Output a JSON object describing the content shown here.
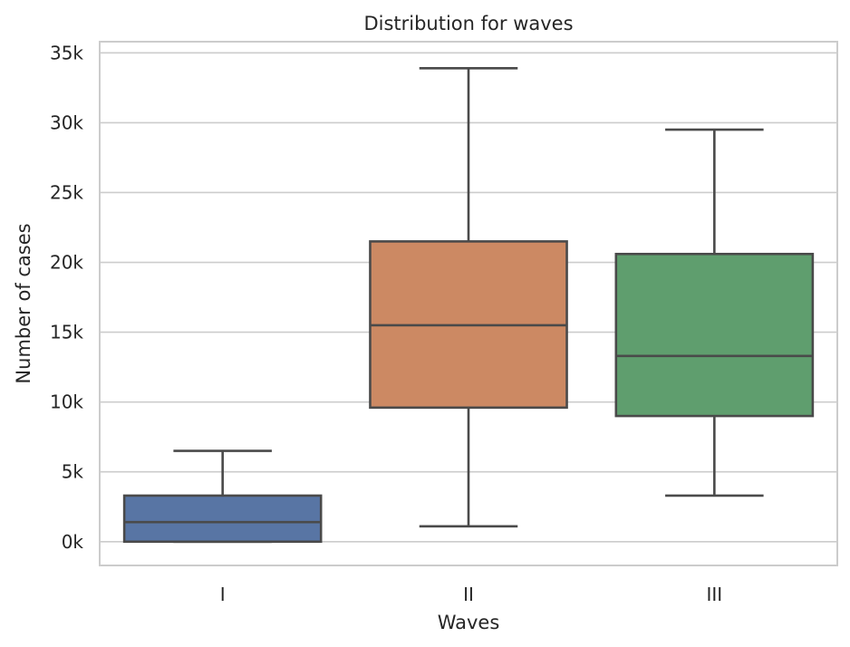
{
  "chart_data": {
    "type": "box",
    "title": "Distribution for waves",
    "xlabel": "Waves",
    "ylabel": "Number of cases",
    "ylim": [
      -1700,
      35800
    ],
    "yticks": [
      0,
      5000,
      10000,
      15000,
      20000,
      25000,
      30000,
      35000
    ],
    "ytick_labels": [
      "0k",
      "5k",
      "10k",
      "15k",
      "20k",
      "25k",
      "30k",
      "35k"
    ],
    "grid": true,
    "categories": [
      "I",
      "II",
      "III"
    ],
    "boxes": [
      {
        "category": "I",
        "whisker_low": 0,
        "q1": 0,
        "median": 1400,
        "q3": 3300,
        "whisker_high": 6500,
        "color": "#5875a4"
      },
      {
        "category": "II",
        "whisker_low": 1100,
        "q1": 9600,
        "median": 15500,
        "q3": 21500,
        "whisker_high": 33900,
        "color": "#cc8963"
      },
      {
        "category": "III",
        "whisker_low": 3300,
        "q1": 9000,
        "median": 13300,
        "q3": 20600,
        "whisker_high": 29500,
        "color": "#5f9e6e"
      }
    ]
  }
}
